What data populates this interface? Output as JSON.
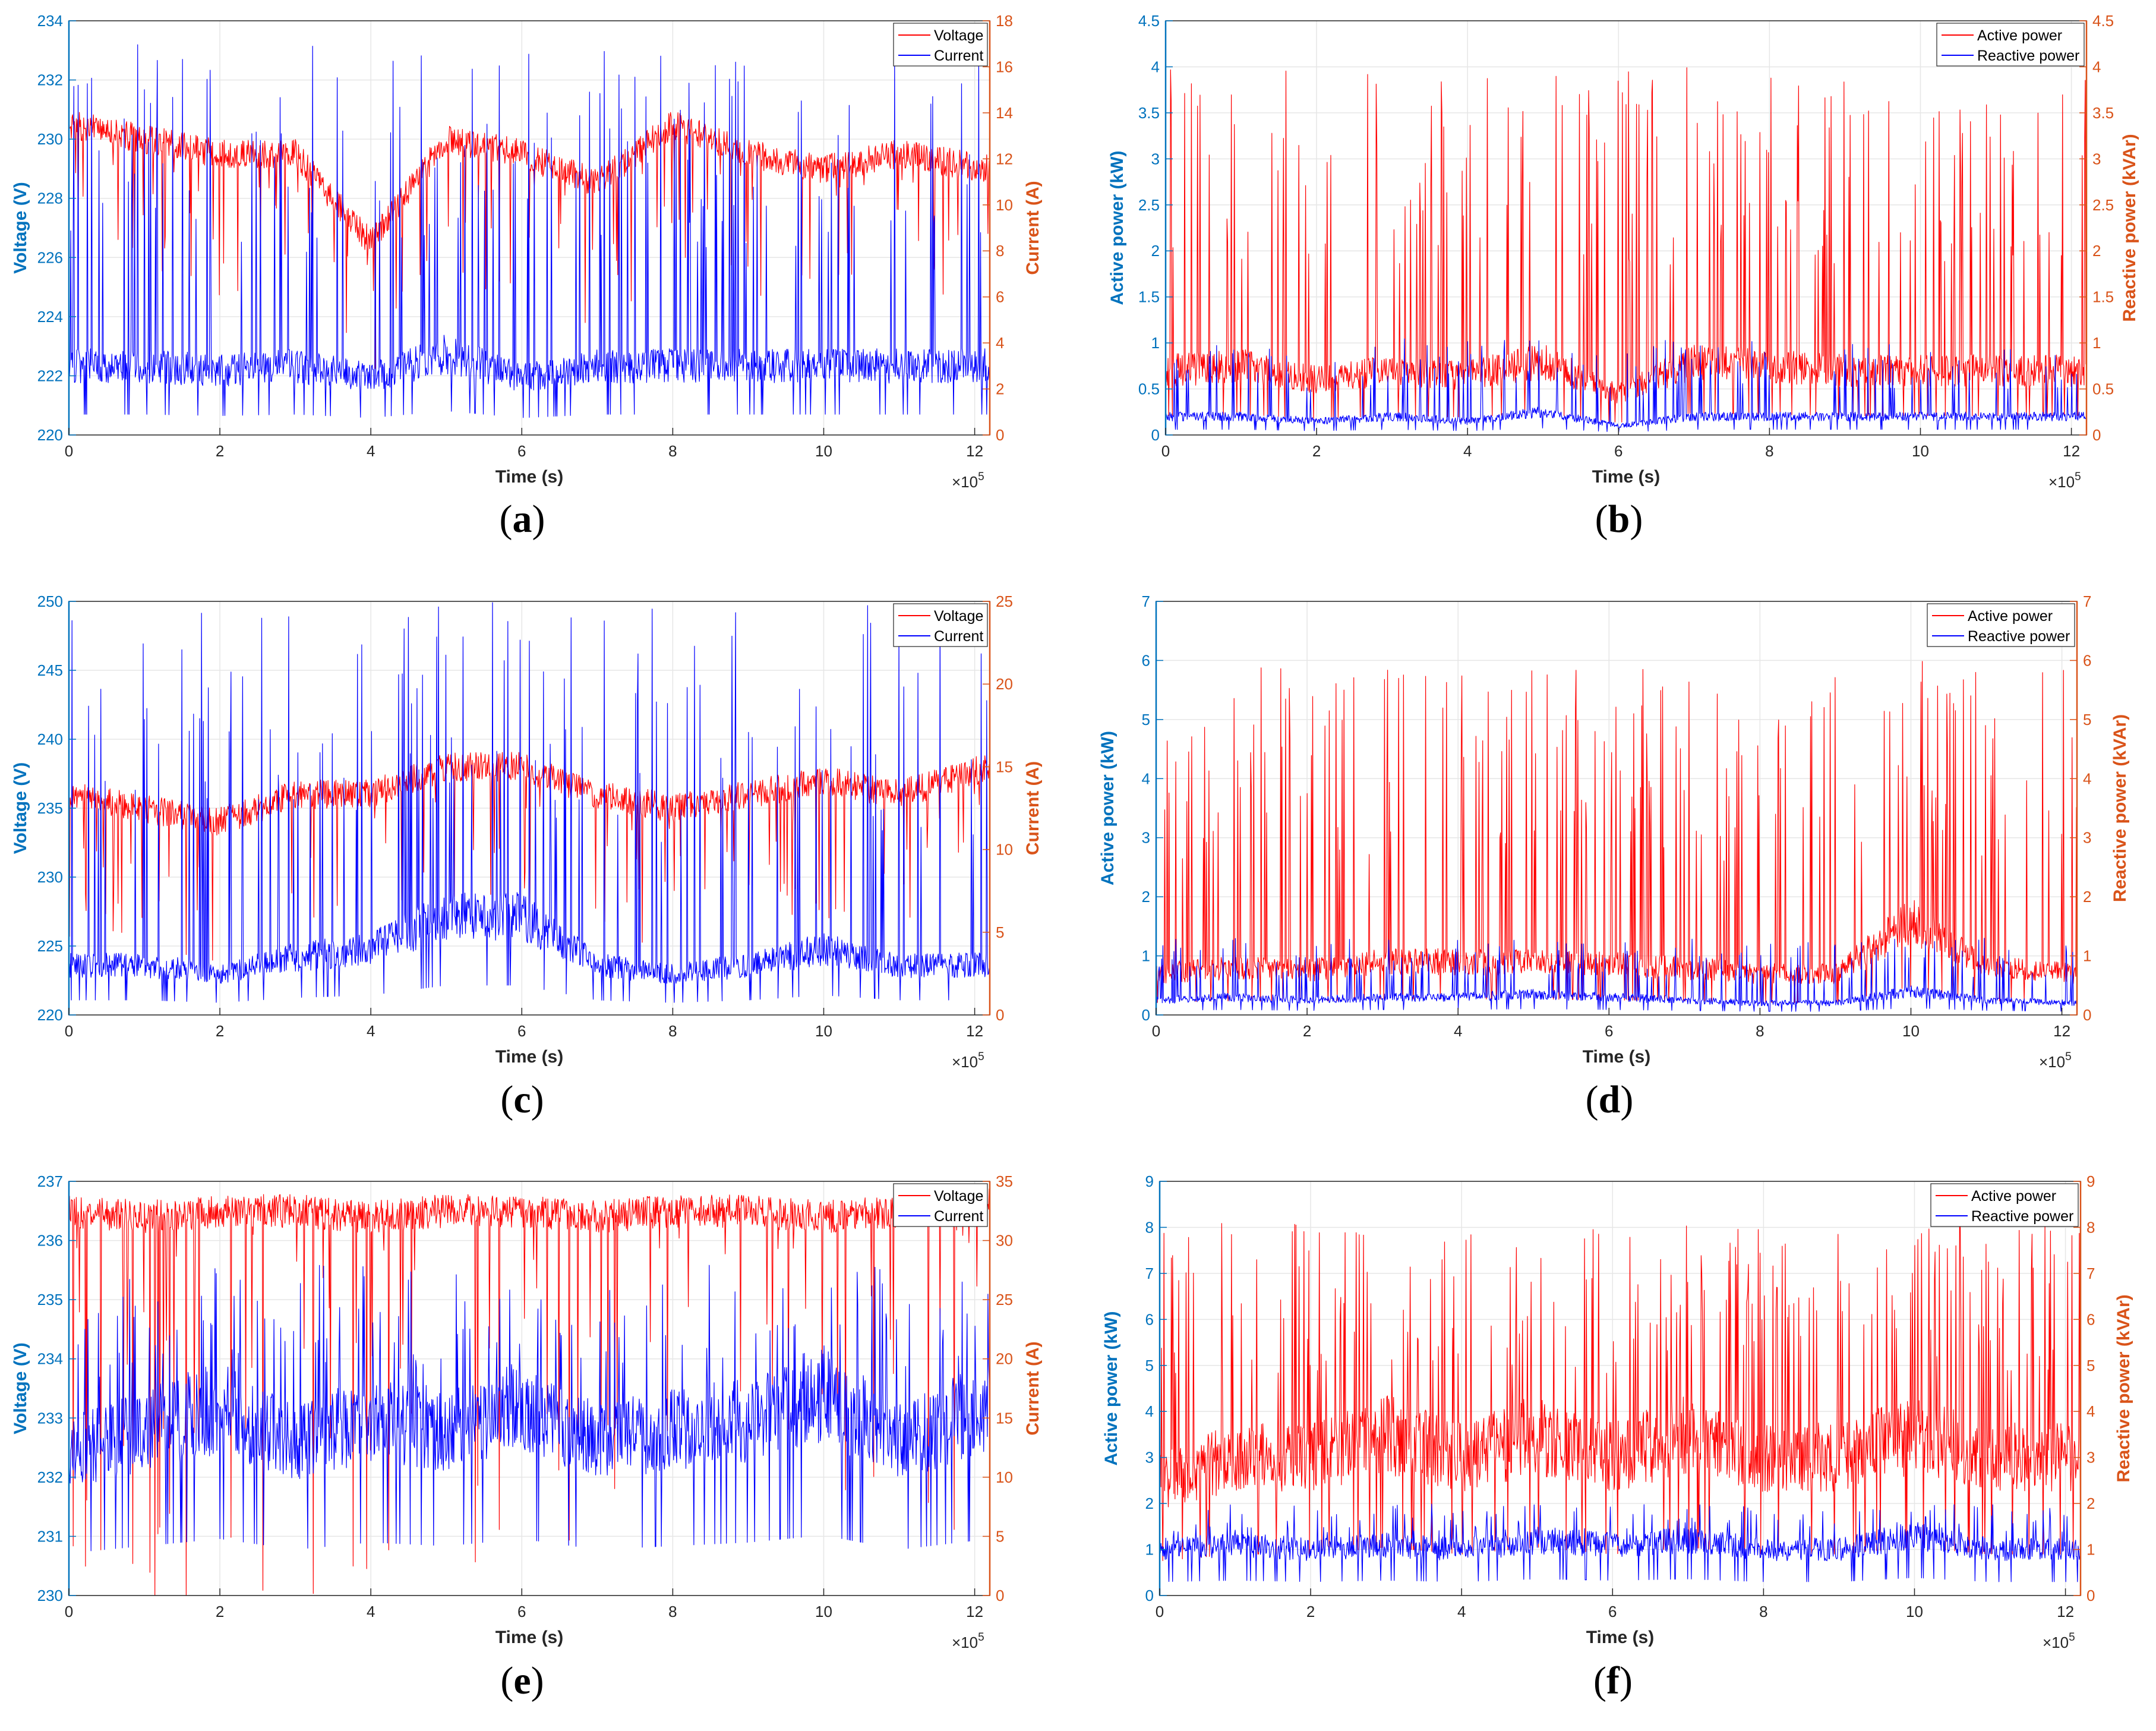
{
  "colors": {
    "red": "#ff0000",
    "blue": "#0000ff",
    "left_axis": "#0072bd",
    "right_axis": "#d95319",
    "grid": "#e6e6e6"
  },
  "panels": [
    {
      "id": "a",
      "caption_open": "(",
      "caption_letter": "a",
      "caption_close": ")",
      "xlabel": "Time (s)",
      "x_multiplier_base": "×10",
      "x_multiplier_exp": "5",
      "ylabel_left": "Voltage (V)",
      "ylabel_right": "Current (A)",
      "legend": [
        {
          "label": "Voltage",
          "color": "#ff0000"
        },
        {
          "label": "Current",
          "color": "#0000ff"
        }
      ]
    },
    {
      "id": "b",
      "caption_open": "(",
      "caption_letter": "b",
      "caption_close": ")",
      "xlabel": "Time (s)",
      "x_multiplier_base": "×10",
      "x_multiplier_exp": "5",
      "ylabel_left": "Active power (kW)",
      "ylabel_right": "Reactive power (kVAr)",
      "legend": [
        {
          "label": "Active power",
          "color": "#ff0000"
        },
        {
          "label": "Reactive power",
          "color": "#0000ff"
        }
      ]
    },
    {
      "id": "c",
      "caption_open": "(",
      "caption_letter": "c",
      "caption_close": ")",
      "xlabel": "Time (s)",
      "x_multiplier_base": "×10",
      "x_multiplier_exp": "5",
      "ylabel_left": "Voltage (V)",
      "ylabel_right": "Current (A)",
      "legend": [
        {
          "label": "Voltage",
          "color": "#ff0000"
        },
        {
          "label": "Current",
          "color": "#0000ff"
        }
      ]
    },
    {
      "id": "d",
      "caption_open": "(",
      "caption_letter": "d",
      "caption_close": ")",
      "xlabel": "Time (s)",
      "x_multiplier_base": "×10",
      "x_multiplier_exp": "5",
      "ylabel_left": "Active power (kW)",
      "ylabel_right": "Reactive power (kVAr)",
      "legend": [
        {
          "label": "Active power",
          "color": "#ff0000"
        },
        {
          "label": "Reactive power",
          "color": "#0000ff"
        }
      ]
    },
    {
      "id": "e",
      "caption_open": "(",
      "caption_letter": "e",
      "caption_close": ")",
      "xlabel": "Time (s)",
      "x_multiplier_base": "×10",
      "x_multiplier_exp": "5",
      "ylabel_left": "Voltage (V)",
      "ylabel_right": "Current (A)",
      "legend": [
        {
          "label": "Voltage",
          "color": "#ff0000"
        },
        {
          "label": "Current",
          "color": "#0000ff"
        }
      ]
    },
    {
      "id": "f",
      "caption_open": "(",
      "caption_letter": "f",
      "caption_close": ")",
      "xlabel": "Time (s)",
      "x_multiplier_base": "×10",
      "x_multiplier_exp": "5",
      "ylabel_left": "Active power (kW)",
      "ylabel_right": "Reactive power (kVAr)",
      "legend": [
        {
          "label": "Active power",
          "color": "#ff0000"
        },
        {
          "label": "Reactive power",
          "color": "#0000ff"
        }
      ]
    }
  ],
  "chart_data": [
    {
      "panel": "a",
      "type": "line",
      "xlabel": "Time (s)",
      "x_scale": "×10^5",
      "xlim": [
        0,
        12.2
      ],
      "x_ticks": [
        0,
        2,
        4,
        6,
        8,
        10,
        12
      ],
      "ylabel_left": "Voltage (V)",
      "ylim_left": [
        220,
        234
      ],
      "y_ticks_left": [
        220,
        222,
        224,
        226,
        228,
        230,
        232,
        234
      ],
      "ylabel_right": "Current (A)",
      "ylim_right": [
        0,
        18
      ],
      "y_ticks_right": [
        0,
        2,
        4,
        6,
        8,
        10,
        12,
        14,
        16,
        18
      ],
      "legend_position": "top-right",
      "series": [
        {
          "name": "Voltage",
          "axis": "left",
          "color": "#ff0000",
          "baseline_approx": 229.5,
          "x": [
            0,
            1,
            2,
            3,
            4,
            5,
            6,
            7,
            8,
            9,
            10,
            11,
            12.2
          ],
          "y": [
            230.5,
            230,
            229.5,
            229.5,
            226.5,
            230,
            229.5,
            228.5,
            230.5,
            229.5,
            229,
            229.5,
            229
          ]
        },
        {
          "name": "Current",
          "axis": "right",
          "color": "#0000ff",
          "baseline_approx": 3,
          "x": [
            0,
            1,
            2,
            3,
            4,
            5,
            6,
            7,
            8,
            9,
            10,
            11,
            12.2
          ],
          "y": [
            3,
            3,
            2.8,
            3,
            2.5,
            3.5,
            2.5,
            3,
            3,
            3,
            3,
            3,
            3
          ],
          "peak_max": 17
        }
      ]
    },
    {
      "panel": "b",
      "type": "line",
      "xlabel": "Time (s)",
      "x_scale": "×10^5",
      "xlim": [
        0,
        12.2
      ],
      "x_ticks": [
        0,
        2,
        4,
        6,
        8,
        10,
        12
      ],
      "ylabel_left": "Active power (kW)",
      "ylim_left": [
        0,
        4.5
      ],
      "y_ticks_left": [
        0,
        0.5,
        1,
        1.5,
        2,
        2.5,
        3,
        3.5,
        4,
        4.5
      ],
      "ylabel_right": "Reactive power (kVAr)",
      "ylim_right": [
        0,
        4.5
      ],
      "y_ticks_right": [
        0,
        0.5,
        1,
        1.5,
        2,
        2.5,
        3,
        3.5,
        4,
        4.5
      ],
      "legend_position": "top-right",
      "series": [
        {
          "name": "Active power",
          "axis": "left",
          "color": "#ff0000",
          "x": [
            0,
            1,
            2,
            3,
            4,
            5,
            6,
            7,
            8,
            9,
            10,
            11,
            12.2
          ],
          "y": [
            0.7,
            0.75,
            0.6,
            0.7,
            0.65,
            0.8,
            0.45,
            0.8,
            0.75,
            0.7,
            0.7,
            0.7,
            0.7
          ],
          "peak_max": 4
        },
        {
          "name": "Reactive power",
          "axis": "right",
          "color": "#0000ff",
          "x": [
            0,
            1,
            2,
            3,
            4,
            5,
            6,
            7,
            8,
            9,
            10,
            11,
            12.2
          ],
          "y": [
            0.2,
            0.2,
            0.15,
            0.2,
            0.15,
            0.25,
            0.1,
            0.2,
            0.2,
            0.2,
            0.2,
            0.2,
            0.2
          ],
          "peak_max": 1.05
        }
      ]
    },
    {
      "panel": "c",
      "type": "line",
      "xlabel": "Time (s)",
      "x_scale": "×10^5",
      "xlim": [
        0,
        12.2
      ],
      "x_ticks": [
        0,
        2,
        4,
        6,
        8,
        10,
        12
      ],
      "ylabel_left": "Voltage (V)",
      "ylim_left": [
        220,
        250
      ],
      "y_ticks_left": [
        220,
        225,
        230,
        235,
        240,
        245,
        250
      ],
      "ylabel_right": "Current (A)",
      "ylim_right": [
        0,
        25
      ],
      "y_ticks_right": [
        0,
        5,
        10,
        15,
        20,
        25
      ],
      "legend_position": "top-right",
      "series": [
        {
          "name": "Voltage",
          "axis": "left",
          "color": "#ff0000",
          "x": [
            0,
            1,
            2,
            3,
            4,
            5,
            6,
            7,
            8,
            9,
            10,
            11,
            12.2
          ],
          "y": [
            236,
            235,
            234,
            236,
            236,
            238,
            238,
            236,
            235,
            236,
            237,
            236,
            238
          ]
        },
        {
          "name": "Current",
          "axis": "right",
          "color": "#0000ff",
          "x": [
            0,
            1,
            2,
            3,
            4,
            5,
            6,
            7,
            8,
            9,
            10,
            11,
            12.2
          ],
          "y": [
            3,
            3,
            2.5,
            3.5,
            4,
            6,
            6,
            3,
            2.5,
            3,
            4,
            3,
            3
          ],
          "peak_max": 25
        }
      ]
    },
    {
      "panel": "d",
      "type": "line",
      "xlabel": "Time (s)",
      "x_scale": "×10^5",
      "xlim": [
        0,
        12.2
      ],
      "x_ticks": [
        0,
        2,
        4,
        6,
        8,
        10,
        12
      ],
      "ylabel_left": "Active power (kW)",
      "ylim_left": [
        0,
        7
      ],
      "y_ticks_left": [
        0,
        1,
        2,
        3,
        4,
        5,
        6,
        7
      ],
      "ylabel_right": "Reactive power (kVAr)",
      "ylim_right": [
        0,
        7
      ],
      "y_ticks_right": [
        0,
        1,
        2,
        3,
        4,
        5,
        6,
        7
      ],
      "legend_position": "top-right",
      "series": [
        {
          "name": "Active power",
          "axis": "left",
          "color": "#ff0000",
          "x": [
            0,
            1,
            2,
            3,
            4,
            5,
            6,
            7,
            8,
            9,
            10,
            11,
            12.2
          ],
          "y": [
            0.7,
            0.8,
            0.75,
            0.9,
            0.9,
            0.9,
            0.85,
            0.8,
            0.7,
            0.7,
            1.6,
            0.8,
            0.7
          ],
          "peak_max": 6
        },
        {
          "name": "Reactive power",
          "axis": "right",
          "color": "#0000ff",
          "x": [
            0,
            1,
            2,
            3,
            4,
            5,
            6,
            7,
            8,
            9,
            10,
            11,
            12.2
          ],
          "y": [
            0.25,
            0.3,
            0.25,
            0.3,
            0.3,
            0.35,
            0.3,
            0.25,
            0.2,
            0.2,
            0.4,
            0.25,
            0.2
          ],
          "peak_max": 1.3
        }
      ]
    },
    {
      "panel": "e",
      "type": "line",
      "xlabel": "Time (s)",
      "x_scale": "×10^5",
      "xlim": [
        0,
        12.2
      ],
      "x_ticks": [
        0,
        2,
        4,
        6,
        8,
        10,
        12
      ],
      "ylabel_left": "Voltage (V)",
      "ylim_left": [
        230,
        237
      ],
      "y_ticks_left": [
        230,
        231,
        232,
        233,
        234,
        235,
        236,
        237
      ],
      "ylabel_right": "Current (A)",
      "ylim_right": [
        0,
        35
      ],
      "y_ticks_right": [
        0,
        5,
        10,
        15,
        20,
        25,
        30,
        35
      ],
      "legend_position": "top-right",
      "series": [
        {
          "name": "Voltage",
          "axis": "left",
          "color": "#ff0000",
          "x": [
            0,
            1,
            2,
            3,
            4,
            5,
            6,
            7,
            8,
            9,
            10,
            11,
            12.2
          ],
          "y": [
            236.5,
            236.4,
            236.5,
            236.5,
            236.4,
            236.5,
            236.5,
            236.4,
            236.5,
            236.5,
            236.4,
            236.5,
            236.6
          ]
        },
        {
          "name": "Current",
          "axis": "right",
          "color": "#0000ff",
          "x": [
            0,
            1,
            2,
            3,
            4,
            5,
            6,
            7,
            8,
            9,
            10,
            11,
            12.2
          ],
          "y": [
            12,
            14,
            16,
            13,
            15,
            14,
            16,
            13,
            14,
            15,
            17,
            13,
            16
          ],
          "peak_max": 28
        }
      ]
    },
    {
      "panel": "f",
      "type": "line",
      "xlabel": "Time (s)",
      "x_scale": "×10^5",
      "xlim": [
        0,
        12.2
      ],
      "x_ticks": [
        0,
        2,
        4,
        6,
        8,
        10,
        12
      ],
      "ylabel_left": "Active power (kW)",
      "ylim_left": [
        0,
        9
      ],
      "y_ticks_left": [
        0,
        1,
        2,
        3,
        4,
        5,
        6,
        7,
        8,
        9
      ],
      "ylabel_right": "Reactive power (kVAr)",
      "ylim_right": [
        0,
        9
      ],
      "y_ticks_right": [
        0,
        1,
        2,
        3,
        4,
        5,
        6,
        7,
        8,
        9
      ],
      "legend_position": "top-right",
      "series": [
        {
          "name": "Active power",
          "axis": "left",
          "color": "#ff0000",
          "x": [
            0,
            1,
            2,
            3,
            4,
            5,
            6,
            7,
            8,
            9,
            10,
            11,
            12.2
          ],
          "y": [
            2.5,
            3,
            3,
            3.5,
            3,
            3.5,
            3,
            3.5,
            3,
            3,
            3.5,
            3,
            3
          ],
          "peak_max": 8.1
        },
        {
          "name": "Reactive power",
          "axis": "right",
          "color": "#0000ff",
          "x": [
            0,
            1,
            2,
            3,
            4,
            5,
            6,
            7,
            8,
            9,
            10,
            11,
            12.2
          ],
          "y": [
            1,
            1.1,
            1,
            1.1,
            1,
            1.2,
            1.1,
            1.2,
            1,
            1,
            1.3,
            1,
            1
          ],
          "peak_max": 2
        }
      ]
    }
  ]
}
